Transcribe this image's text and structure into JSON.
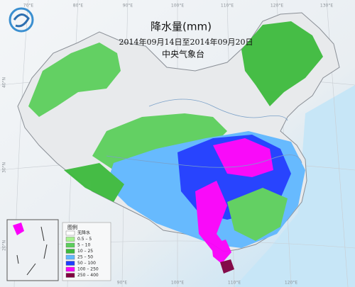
{
  "map": {
    "title": "降水量(mm)",
    "subtitle": "2014年09月14日至2014年09月20日",
    "source": "中央气象台",
    "graticule_top": [
      "70°E",
      "80°E",
      "90°E",
      "100°E",
      "110°E",
      "120°E",
      "130°E"
    ],
    "graticule_bottom": [
      "90°E",
      "100°E",
      "110°E",
      "120°E"
    ],
    "graticule_left": [
      "40°N",
      "30°N",
      "20°N"
    ],
    "legend": {
      "title": "图例",
      "items": [
        {
          "label": "无降水",
          "color": "#ffffff"
        },
        {
          "label": "0.5 – 5",
          "color": "#a6f28f"
        },
        {
          "label": "5 – 10",
          "color": "#5ccf5c"
        },
        {
          "label": "10 – 25",
          "color": "#3dba3d"
        },
        {
          "label": "25 – 50",
          "color": "#61b8ff"
        },
        {
          "label": "50 – 100",
          "color": "#1e3cff"
        },
        {
          "label": "100 – 250",
          "color": "#fa00fa"
        },
        {
          "label": "250 – 400",
          "color": "#800040"
        }
      ]
    }
  }
}
